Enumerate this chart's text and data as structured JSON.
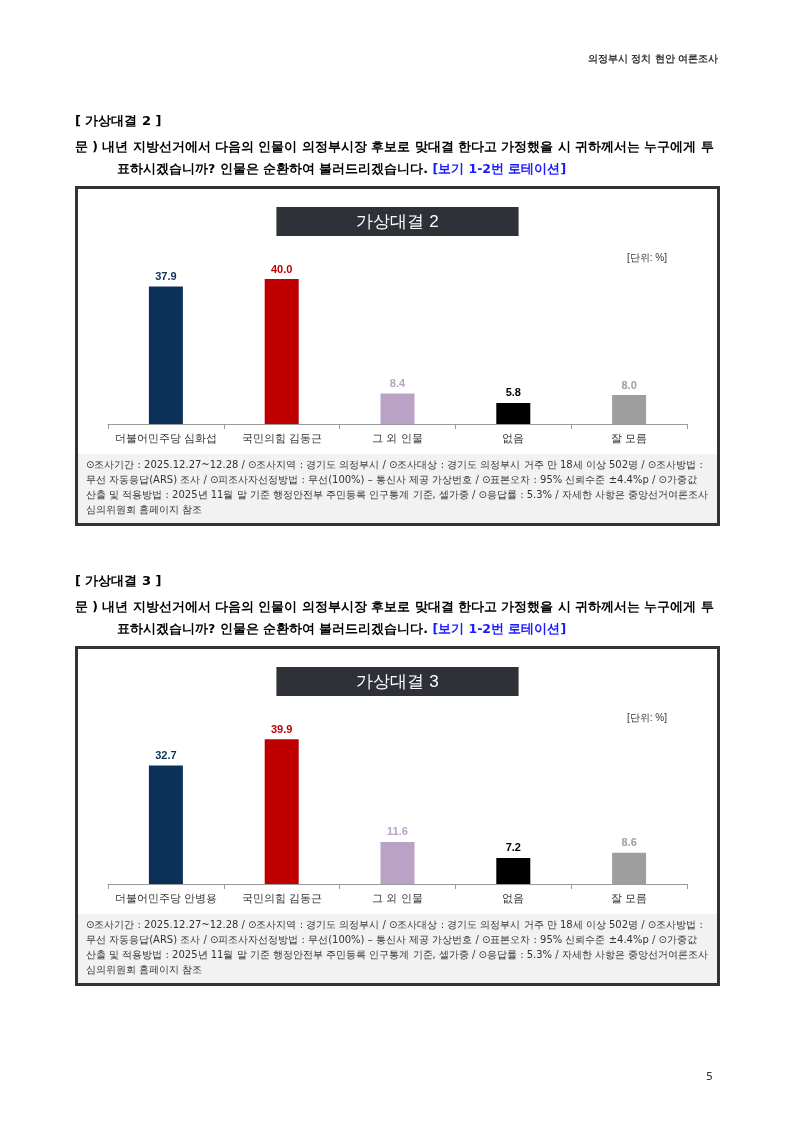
{
  "chart_data": [
    {
      "type": "bar",
      "title": "가상대결 2",
      "subtitle": "[단위: %]",
      "categories": [
        "더불어민주당 심화섭",
        "국민의힘 김동근",
        "그 외 인물",
        "없음",
        "잘 모름"
      ],
      "values": [
        37.9,
        40.0,
        8.4,
        5.8,
        8.0
      ],
      "colors": [
        "#0b3158",
        "#c00000",
        "#b9a2c6",
        "#000000",
        "#9e9e9e"
      ],
      "value_labels": [
        "37.9",
        "40.0",
        "8.4",
        "5.8",
        "8.0"
      ],
      "annotations": [
        "[ 가상대결 2 ]",
        "문 )   내년 지방선거에서 다음의 인물이 의정부시장 후보로 맞대결 한다고 가정했을 시 귀하께서는 누구에게 투표하시겠습니까? 인물은 순환하여 불러드리겠습니다.",
        "[보기 1-2번 로테이션]",
        "⊙조사기간 : 2025.12.27~12.28 / ⊙조사지역 : 경기도 의정부시 / ⊙조사대상 : 경기도 의정부시 거주 만 18세 이상 502명 / ⊙조사방법 : 무선 자동응답(ARS) 조사 / ⊙피조사자선정방법 : 무선(100%) – 통신사 제공 가상번호 / ⊙표본오차 : 95% 신뢰수준 ±4.4%p / ⊙가중값 산출 및 적용방법 : 2025년 11월 말 기준 행정안전부 주민등록 인구통계 기준, 셀가중 / ⊙응답률 : 5.3% / 자세한 사항은 중앙선거여론조사심의위원회 홈페이지 참조",
        "의정부시 정치 현안 여론조사"
      ]
    },
    {
      "type": "bar",
      "title": "가상대결 3",
      "subtitle": "[단위: %]",
      "categories": [
        "더불어민주당 안병용",
        "국민의힘 김동근",
        "그 외 인물",
        "없음",
        "잘 모름"
      ],
      "values": [
        32.7,
        39.9,
        11.6,
        7.2,
        8.6
      ],
      "colors": [
        "#0b3158",
        "#c00000",
        "#b9a2c6",
        "#000000",
        "#9e9e9e"
      ],
      "value_labels": [
        "32.7",
        "39.9",
        "11.6",
        "7.2",
        "8.6"
      ],
      "annotations": [
        "[ 가상대결 3 ]",
        "문 )   내년 지방선거에서 다음의 인물이 의정부시장 후보로 맞대결 한다고 가정했을 시 귀하께서는 누구에게 투표하시겠습니까? 인물은 순환하여 불러드리겠습니다.",
        "[보기 1-2번 로테이션]",
        "⊙조사기간 : 2025.12.27~12.28 / ⊙조사지역 : 경기도 의정부시 / ⊙조사대상 : 경기도 의정부시 거주 만 18세 이상 502명 / ⊙조사방법 : 무선 자동응답(ARS) 조사 / ⊙피조사자선정방법 : 무선(100%) – 통신사 제공 가상번호 / ⊙표본오차 : 95% 신뢰수준 ±4.4%p / ⊙가중값 산출 및 적용방법 : 2025년 11월 말 기준 행정안전부 주민등록 인구통계 기준, 셀가중 / ⊙응답률 : 5.3% / 자세한 사항은 중앙선거여론조사심의위원회 홈페이지 참조",
        "5"
      ]
    }
  ]
}
